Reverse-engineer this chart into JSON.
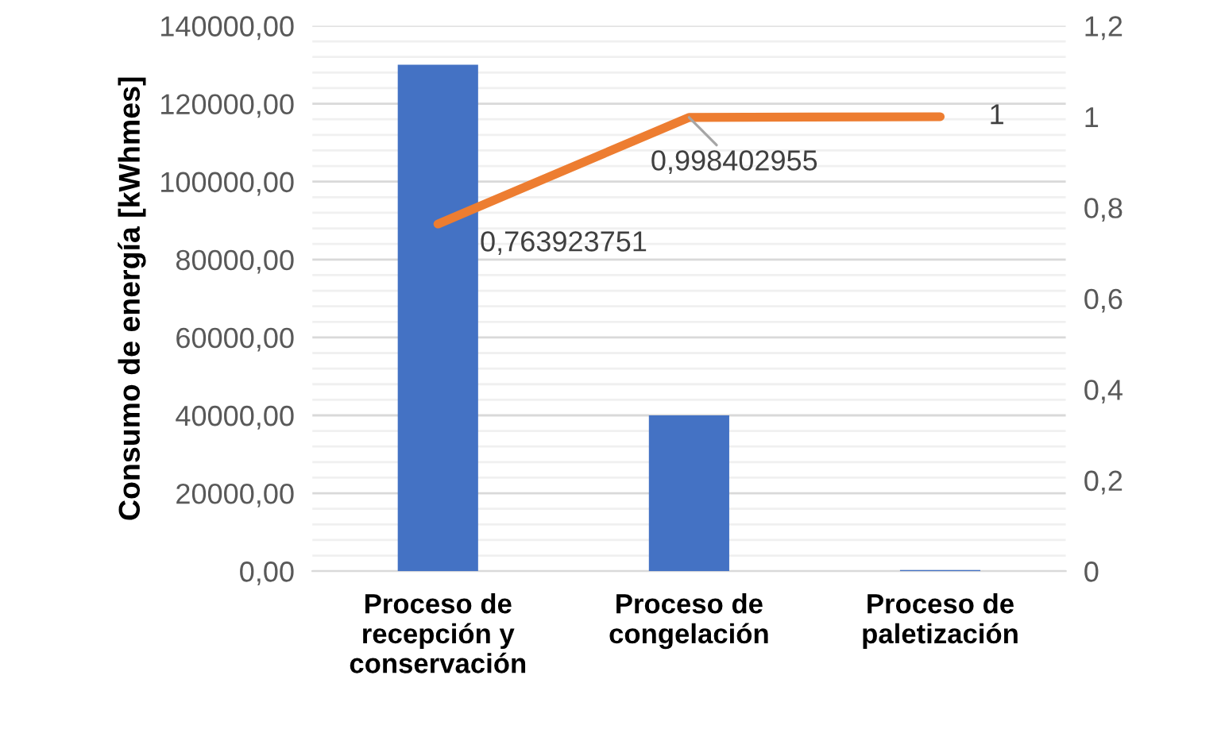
{
  "chart_data": {
    "type": "bar",
    "ylabel": "Consumo de energía [kWhmes]",
    "categories": [
      "Proceso de recepción y conservación",
      "Proceso de congelación",
      "Proceso de paletización"
    ],
    "series": [
      {
        "color": "#4472c4",
        "values": [
          130000,
          40000,
          300
        ]
      },
      {
        "type": "line",
        "axis": "y2",
        "color": "#ed7d31",
        "values": [
          0.763923751,
          0.998402955,
          1
        ],
        "value_labels": [
          "0,763923751",
          "0,998402955",
          "1"
        ]
      }
    ],
    "ylim": [
      0,
      140000
    ],
    "yticks": [
      {
        "value": 0,
        "label": "0,00"
      },
      {
        "value": 4000,
        "label": null
      },
      {
        "value": 8000,
        "label": null
      },
      {
        "value": 12000,
        "label": null
      },
      {
        "value": 16000,
        "label": null
      },
      {
        "value": 20000,
        "label": "20000,00"
      },
      {
        "value": 24000,
        "label": null
      },
      {
        "value": 28000,
        "label": null
      },
      {
        "value": 32000,
        "label": null
      },
      {
        "value": 36000,
        "label": null
      },
      {
        "value": 40000,
        "label": "40000,00"
      },
      {
        "value": 44000,
        "label": null
      },
      {
        "value": 48000,
        "label": null
      },
      {
        "value": 52000,
        "label": null
      },
      {
        "value": 56000,
        "label": null
      },
      {
        "value": 60000,
        "label": "60000,00"
      },
      {
        "value": 64000,
        "label": null
      },
      {
        "value": 68000,
        "label": null
      },
      {
        "value": 72000,
        "label": null
      },
      {
        "value": 76000,
        "label": null
      },
      {
        "value": 80000,
        "label": "80000,00"
      },
      {
        "value": 84000,
        "label": null
      },
      {
        "value": 88000,
        "label": null
      },
      {
        "value": 92000,
        "label": null
      },
      {
        "value": 96000,
        "label": null
      },
      {
        "value": 100000,
        "label": "100000,00"
      },
      {
        "value": 104000,
        "label": null
      },
      {
        "value": 108000,
        "label": null
      },
      {
        "value": 112000,
        "label": null
      },
      {
        "value": 116000,
        "label": null
      },
      {
        "value": 120000,
        "label": "120000,00"
      },
      {
        "value": 124000,
        "label": null
      },
      {
        "value": 128000,
        "label": null
      },
      {
        "value": 132000,
        "label": null
      },
      {
        "value": 136000,
        "label": null
      },
      {
        "value": 140000,
        "label": "140000,00"
      }
    ],
    "y2lim": [
      0,
      1.2
    ],
    "y2ticks": [
      0,
      {
        "value": 0.2,
        "label": "0,2"
      },
      {
        "value": 0.4,
        "label": "0,4"
      },
      {
        "value": 0.6,
        "label": "0,6"
      },
      {
        "value": 0.8,
        "label": "0,8"
      },
      1,
      {
        "value": 1.2,
        "label": "1,2"
      }
    ],
    "grid": "y",
    "legend": false,
    "marker": "none",
    "line_style": "solid"
  }
}
